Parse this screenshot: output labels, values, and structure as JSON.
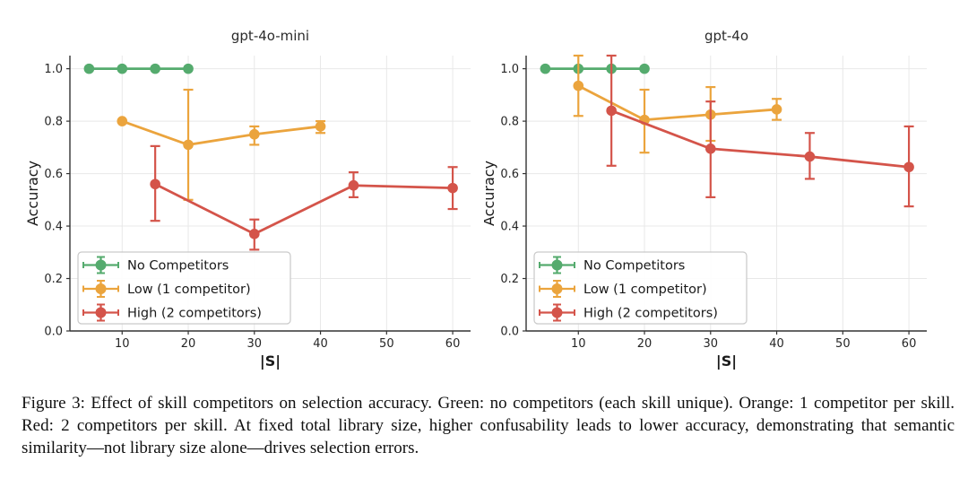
{
  "figure": {
    "caption": "Figure 3: Effect of skill competitors on selection accuracy. Green: no competitors (each skill unique). Orange: 1 competitor per skill. Red: 2 competitors per skill. At fixed total library size, higher confusability leads to lower accuracy, demonstrating that semantic similarity—not library size alone—drives selection errors."
  },
  "colors": {
    "green": "#55ab6e",
    "orange": "#eba43d",
    "red": "#d4544a",
    "grid": "#e8e8e8",
    "spine": "#333333",
    "tick_text": "#262626",
    "legend_border": "#c9c9c9"
  },
  "chart_data": [
    {
      "type": "line",
      "title": "gpt-4o-mini",
      "xlabel": "|S|",
      "ylabel": "Accuracy",
      "xlim": [
        2.1,
        62.7
      ],
      "ylim": [
        0,
        1.05
      ],
      "xticks": [
        10,
        20,
        30,
        40,
        50,
        60
      ],
      "yticks": [
        0.0,
        0.2,
        0.4,
        0.6,
        0.8,
        1.0
      ],
      "grid": true,
      "legend_position": "lower left",
      "series": [
        {
          "name": "No Competitors",
          "color": "#55ab6e",
          "x": [
            5,
            10,
            15,
            20
          ],
          "y": [
            1.0,
            1.0,
            1.0,
            1.0
          ],
          "lo": [
            1.0,
            1.0,
            1.0,
            1.0
          ],
          "hi": [
            1.0,
            1.0,
            1.0,
            1.0
          ]
        },
        {
          "name": "Low (1 competitor)",
          "color": "#eba43d",
          "x": [
            10,
            20,
            30,
            40
          ],
          "y": [
            0.8,
            0.71,
            0.75,
            0.78
          ],
          "lo": [
            0.8,
            0.5,
            0.71,
            0.755
          ],
          "hi": [
            0.8,
            0.92,
            0.78,
            0.8
          ]
        },
        {
          "name": "High (2 competitors)",
          "color": "#d4544a",
          "x": [
            15,
            30,
            45,
            60
          ],
          "y": [
            0.56,
            0.37,
            0.555,
            0.545
          ],
          "lo": [
            0.42,
            0.31,
            0.51,
            0.465
          ],
          "hi": [
            0.705,
            0.425,
            0.605,
            0.625
          ]
        }
      ]
    },
    {
      "type": "line",
      "title": "gpt-4o",
      "xlabel": "|S|",
      "ylabel": "Accuracy",
      "xlim": [
        2.1,
        62.7
      ],
      "ylim": [
        0,
        1.05
      ],
      "xticks": [
        10,
        20,
        30,
        40,
        50,
        60
      ],
      "yticks": [
        0.0,
        0.2,
        0.4,
        0.6,
        0.8,
        1.0
      ],
      "grid": true,
      "legend_position": "lower left",
      "series": [
        {
          "name": "No Competitors",
          "color": "#55ab6e",
          "x": [
            5,
            10,
            15,
            20
          ],
          "y": [
            1.0,
            1.0,
            1.0,
            1.0
          ],
          "lo": [
            1.0,
            1.0,
            1.0,
            1.0
          ],
          "hi": [
            1.0,
            1.0,
            1.0,
            1.0
          ]
        },
        {
          "name": "Low (1 competitor)",
          "color": "#eba43d",
          "x": [
            10,
            20,
            30,
            40
          ],
          "y": [
            0.935,
            0.805,
            0.825,
            0.845
          ],
          "lo": [
            0.82,
            0.68,
            0.725,
            0.805
          ],
          "hi": [
            1.05,
            0.92,
            0.93,
            0.885
          ]
        },
        {
          "name": "High (2 competitors)",
          "color": "#d4544a",
          "x": [
            15,
            30,
            45,
            60
          ],
          "y": [
            0.84,
            0.695,
            0.665,
            0.625
          ],
          "lo": [
            0.63,
            0.51,
            0.58,
            0.475
          ],
          "hi": [
            1.05,
            0.875,
            0.755,
            0.78
          ]
        }
      ]
    }
  ]
}
